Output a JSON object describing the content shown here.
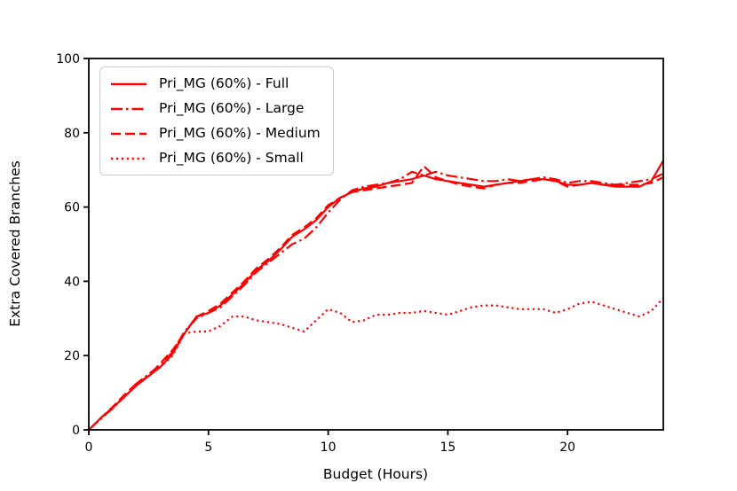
{
  "figure": {
    "background": "#ffffff",
    "axis_color": "#000000",
    "accent_color": "#ff0000"
  },
  "chart_data": {
    "type": "line",
    "title": "",
    "xlabel": "Budget (Hours)",
    "ylabel": "Extra Covered Branches",
    "xlim": [
      0,
      24
    ],
    "ylim": [
      0,
      100
    ],
    "xticks": [
      0,
      5,
      10,
      15,
      20
    ],
    "yticks": [
      0,
      20,
      40,
      60,
      80,
      100
    ],
    "grid": false,
    "legend_position": "upper left",
    "x": [
      0,
      0.5,
      1,
      1.5,
      2,
      2.5,
      3,
      3.5,
      4,
      4.5,
      5,
      5.5,
      6,
      6.5,
      7,
      7.5,
      8,
      8.5,
      9,
      9.5,
      10,
      10.5,
      11,
      11.5,
      12,
      12.5,
      13,
      13.5,
      14,
      14.5,
      15,
      15.5,
      16,
      16.5,
      17,
      17.5,
      18,
      18.5,
      19,
      19.5,
      20,
      20.5,
      21,
      21.5,
      22,
      22.5,
      23,
      23.5,
      24
    ],
    "series": [
      {
        "name": "full",
        "label": "Pri_MG (60%) - Full",
        "style": "solid",
        "color": "#ff0000",
        "values": [
          0,
          3.2,
          6,
          9,
          12,
          14.5,
          17,
          20.5,
          26,
          30.5,
          31.5,
          33.5,
          36.5,
          39.5,
          43,
          45.5,
          48.5,
          52,
          54,
          56.5,
          60,
          62.5,
          64,
          65,
          65.5,
          66.5,
          67,
          67.5,
          68.5,
          67.5,
          67,
          66.5,
          66,
          65.5,
          66,
          66.5,
          67,
          67.5,
          67.5,
          67,
          66,
          66,
          66.5,
          66,
          65.5,
          65.5,
          65.5,
          67,
          72.5
        ]
      },
      {
        "name": "large",
        "label": "Pri_MG (60%) - Large",
        "style": "dashdot",
        "color": "#ff0000",
        "values": [
          0,
          3,
          5.8,
          9,
          12.5,
          15,
          17.5,
          21,
          26.5,
          30,
          31.5,
          33,
          36,
          39,
          42.5,
          45,
          47.5,
          50,
          51.5,
          54.5,
          58.5,
          62,
          64.5,
          65.5,
          66,
          66.5,
          67.5,
          69.5,
          68.5,
          69.5,
          68.5,
          68,
          67.5,
          67,
          67,
          67.5,
          67,
          67.5,
          68,
          67.5,
          66.5,
          67,
          67,
          66.5,
          66,
          66.5,
          67,
          67.5,
          69
        ]
      },
      {
        "name": "medium",
        "label": "Pri_MG (60%) - Medium",
        "style": "dashed",
        "color": "#ff0000",
        "values": [
          0,
          3.2,
          6.2,
          9.5,
          12.5,
          14.5,
          18,
          21.5,
          26,
          30.5,
          32,
          34,
          37,
          40,
          43.5,
          46,
          49,
          52.5,
          54.5,
          57,
          60.5,
          62.5,
          64,
          64.5,
          65,
          65.5,
          66,
          66.5,
          71,
          68,
          67,
          66,
          65.5,
          65,
          66,
          66.5,
          66.5,
          67,
          67.5,
          67,
          65.5,
          66,
          66.5,
          66,
          66,
          66,
          66,
          66.5,
          68
        ]
      },
      {
        "name": "small",
        "label": "Pri_MG (60%) - Small",
        "style": "dotted",
        "color": "#ff0000",
        "values": [
          0,
          3,
          5.8,
          9,
          12,
          14.5,
          17,
          20,
          26,
          26.5,
          26.5,
          28,
          30.5,
          30.5,
          29.5,
          29,
          28.5,
          27.5,
          26.5,
          29.5,
          32.5,
          31.5,
          29,
          29.5,
          31,
          31,
          31.5,
          31.5,
          32,
          31.5,
          31,
          32,
          33,
          33.5,
          33.5,
          33,
          32.5,
          32.5,
          32.5,
          31.5,
          32.5,
          34,
          34.5,
          33.5,
          32.5,
          31.5,
          30.5,
          32,
          35.5
        ]
      }
    ]
  }
}
